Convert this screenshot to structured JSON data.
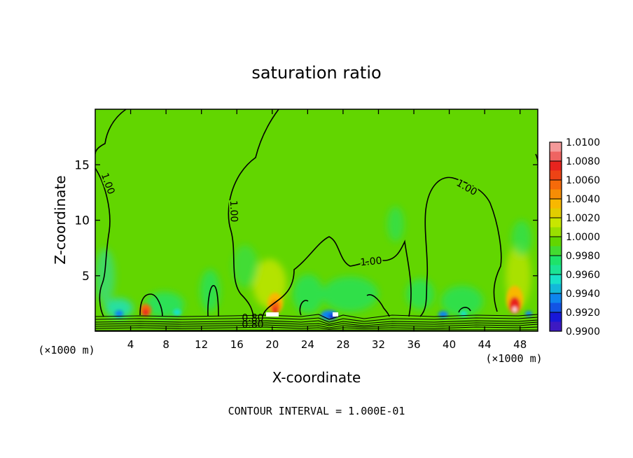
{
  "chart_data": {
    "type": "heatmap",
    "title": "saturation ratio",
    "xlabel": "X-coordinate",
    "ylabel": "Z-coordinate",
    "x_unit_left": "(×1000 m)",
    "x_unit_right": "(×1000 m)",
    "xlim": [
      0,
      50
    ],
    "ylim": [
      0,
      20
    ],
    "x_ticks": [
      4,
      8,
      12,
      16,
      20,
      24,
      28,
      32,
      36,
      40,
      44,
      48
    ],
    "y_ticks": [
      5,
      10,
      15
    ],
    "colorbar": {
      "levels": [
        "1.0100",
        "1.0080",
        "1.0060",
        "1.0040",
        "1.0020",
        "1.0000",
        "0.9980",
        "0.9960",
        "0.9940",
        "0.9920",
        "0.9900"
      ],
      "colors": [
        "#f49a9a",
        "#e8241e",
        "#f56a0a",
        "#f8b800",
        "#c8e600",
        "#62d600",
        "#1ee36a",
        "#18e2c8",
        "#0e86ee",
        "#1818d8",
        "#6a1aa8"
      ]
    },
    "background_value_color": "#62d600",
    "contour_labels": [
      {
        "text": "1.00",
        "x": 1.1,
        "z": 13.2
      },
      {
        "text": "1.00",
        "x": 15.3,
        "z": 10.8
      },
      {
        "text": "1.00",
        "x": 31.2,
        "z": 6.0
      },
      {
        "text": "1.00",
        "x": 41.8,
        "z": 12.7
      },
      {
        "text": "0.80",
        "x": 17.8,
        "z": 0.9
      },
      {
        "text": "0.80",
        "x": 17.8,
        "z": 0.3
      }
    ],
    "annotation": "CONTOUR INTERVAL = 1.000E-01"
  }
}
